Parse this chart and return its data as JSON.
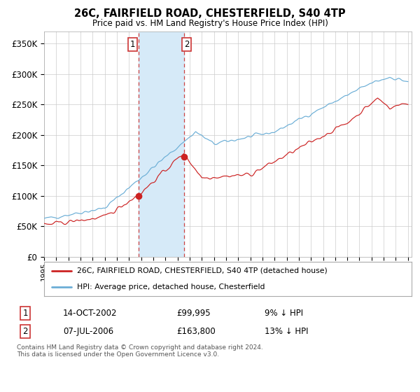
{
  "title": "26C, FAIRFIELD ROAD, CHESTERFIELD, S40 4TP",
  "subtitle": "Price paid vs. HM Land Registry's House Price Index (HPI)",
  "ylim": [
    0,
    370000
  ],
  "yticks": [
    0,
    50000,
    100000,
    150000,
    200000,
    250000,
    300000,
    350000
  ],
  "ytick_labels": [
    "£0",
    "£50K",
    "£100K",
    "£150K",
    "£200K",
    "£250K",
    "£300K",
    "£350K"
  ],
  "hpi_color": "#6baed6",
  "price_color": "#cc2222",
  "highlight_color": "#d6eaf8",
  "vline_color": "#cc4444",
  "sale1_x": 2002.79,
  "sale1_price": 99995,
  "sale2_x": 2006.54,
  "sale2_price": 163800,
  "legend_line1": "26C, FAIRFIELD ROAD, CHESTERFIELD, S40 4TP (detached house)",
  "legend_line2": "HPI: Average price, detached house, Chesterfield",
  "table_row1": [
    "1",
    "14-OCT-2002",
    "£99,995",
    "9% ↓ HPI"
  ],
  "table_row2": [
    "2",
    "07-JUL-2006",
    "£163,800",
    "13% ↓ HPI"
  ],
  "footer": "Contains HM Land Registry data © Crown copyright and database right 2024.\nThis data is licensed under the Open Government Licence v3.0.",
  "background_color": "#ffffff",
  "grid_color": "#cccccc",
  "xmin": 1995,
  "xmax": 2025.3
}
